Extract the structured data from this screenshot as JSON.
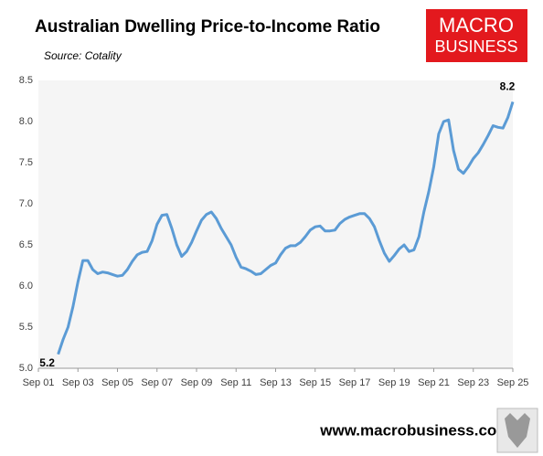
{
  "chart_data": {
    "type": "line",
    "title": "Australian Dwelling Price-to-Income Ratio",
    "subtitle": "Source: Cotality",
    "logo": {
      "line1": "MACRO",
      "line2": "BUSINESS"
    },
    "footer": "www.macrobusiness.com.au",
    "x": [
      2002.75,
      2003,
      2003.25,
      2003.5,
      2003.75,
      2004,
      2004.25,
      2004.5,
      2004.75,
      2005,
      2005.25,
      2005.5,
      2005.75,
      2006,
      2006.25,
      2006.5,
      2006.75,
      2007,
      2007.25,
      2007.5,
      2007.75,
      2008,
      2008.25,
      2008.5,
      2008.75,
      2009,
      2009.25,
      2009.5,
      2009.75,
      2010,
      2010.25,
      2010.5,
      2010.75,
      2011,
      2011.25,
      2011.5,
      2011.75,
      2012,
      2012.25,
      2012.5,
      2012.75,
      2013,
      2013.25,
      2013.5,
      2013.75,
      2014,
      2014.25,
      2014.5,
      2014.75,
      2015,
      2015.25,
      2015.5,
      2015.75,
      2016,
      2016.25,
      2016.5,
      2016.75,
      2017,
      2017.25,
      2017.5,
      2017.75,
      2018,
      2018.25,
      2018.5,
      2018.75,
      2019,
      2019.25,
      2019.5,
      2019.75,
      2020,
      2020.25,
      2020.5,
      2020.75,
      2021,
      2021.25,
      2021.5,
      2021.75,
      2022,
      2022.25,
      2022.5,
      2022.75,
      2023,
      2023.25,
      2023.5,
      2023.75,
      2024,
      2024.25,
      2024.5,
      2024.75,
      2025,
      2025.25,
      2025.5,
      2025.75
    ],
    "series": [
      {
        "name": "Price-to-Income Ratio",
        "color": "#5b9bd5",
        "values": [
          5.17,
          5.35,
          5.5,
          5.75,
          6.05,
          6.31,
          6.31,
          6.2,
          6.15,
          6.17,
          6.16,
          6.14,
          6.12,
          6.13,
          6.2,
          6.3,
          6.38,
          6.41,
          6.42,
          6.55,
          6.75,
          6.86,
          6.87,
          6.7,
          6.5,
          6.36,
          6.42,
          6.53,
          6.67,
          6.8,
          6.87,
          6.9,
          6.82,
          6.7,
          6.6,
          6.5,
          6.35,
          6.23,
          6.21,
          6.18,
          6.14,
          6.15,
          6.2,
          6.25,
          6.28,
          6.38,
          6.46,
          6.49,
          6.49,
          6.53,
          6.6,
          6.68,
          6.72,
          6.73,
          6.67,
          6.67,
          6.68,
          6.76,
          6.81,
          6.84,
          6.86,
          6.88,
          6.88,
          6.82,
          6.72,
          6.55,
          6.4,
          6.3,
          6.37,
          6.45,
          6.5,
          6.42,
          6.44,
          6.6,
          6.9,
          7.15,
          7.45,
          7.85,
          8.0,
          8.02,
          7.65,
          7.42,
          7.37,
          7.45,
          7.55,
          7.62,
          7.72,
          7.83,
          7.95,
          7.93,
          7.92,
          8.05,
          8.24
        ],
        "value_labels": [
          "5.2",
          null,
          null,
          null,
          null,
          null,
          null,
          null,
          null,
          null,
          null,
          null,
          null,
          null,
          null,
          null,
          null,
          null,
          null,
          null,
          null,
          null,
          null,
          null,
          null,
          null,
          null,
          null,
          null,
          null,
          null,
          null,
          null,
          null,
          null,
          null,
          null,
          null,
          null,
          null,
          null,
          null,
          null,
          null,
          null,
          null,
          null,
          null,
          null,
          null,
          null,
          null,
          null,
          null,
          null,
          null,
          null,
          null,
          null,
          null,
          null,
          null,
          null,
          null,
          null,
          null,
          null,
          null,
          null,
          null,
          null,
          null,
          null,
          null,
          null,
          null,
          null,
          null,
          null,
          null,
          null,
          null,
          null,
          null,
          null,
          null,
          null,
          null,
          null,
          null,
          null,
          null,
          "8.2"
        ]
      }
    ],
    "xlim": [
      2001.75,
      2025.75
    ],
    "xticks": [
      {
        "value": 2001.75,
        "label": "Sep 01"
      },
      {
        "value": 2003.75,
        "label": "Sep 03"
      },
      {
        "value": 2005.75,
        "label": "Sep 05"
      },
      {
        "value": 2007.75,
        "label": "Sep 07"
      },
      {
        "value": 2009.75,
        "label": "Sep 09"
      },
      {
        "value": 2011.75,
        "label": "Sep 11"
      },
      {
        "value": 2013.75,
        "label": "Sep 13"
      },
      {
        "value": 2015.75,
        "label": "Sep 15"
      },
      {
        "value": 2017.75,
        "label": "Sep 17"
      },
      {
        "value": 2019.75,
        "label": "Sep 19"
      },
      {
        "value": 2021.75,
        "label": "Sep 21"
      },
      {
        "value": 2023.75,
        "label": "Sep 23"
      },
      {
        "value": 2025.75,
        "label": "Sep 25"
      }
    ],
    "ylim": [
      5,
      8.5
    ],
    "yticks": [
      {
        "value": 5,
        "label": "5.0"
      },
      5.5,
      {
        "value": 6,
        "label": "6.0"
      },
      6.5,
      {
        "value": 7,
        "label": "7.0"
      },
      7.5,
      {
        "value": 8,
        "label": "8.0"
      },
      8.5
    ],
    "grid": false
  }
}
